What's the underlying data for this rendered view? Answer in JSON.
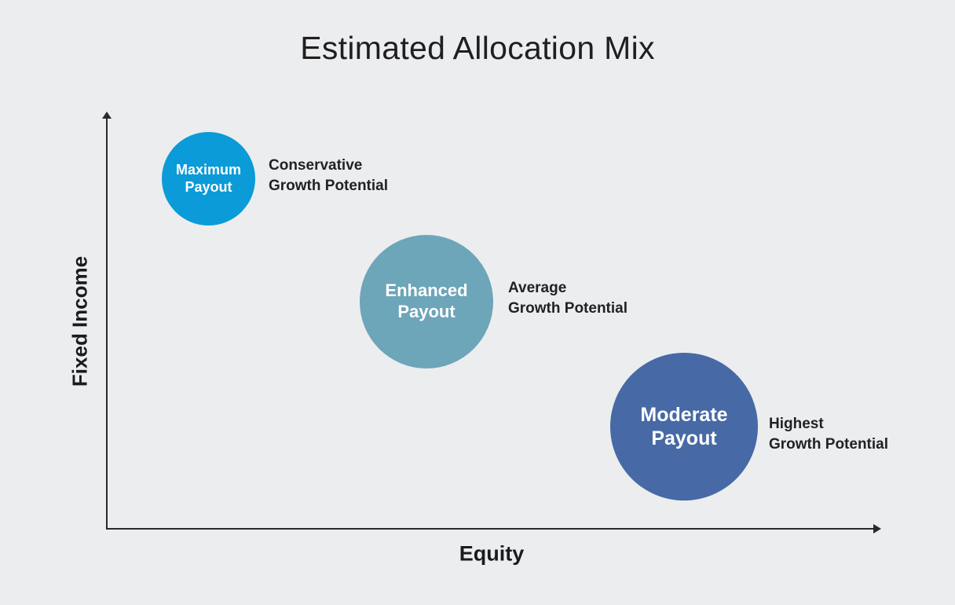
{
  "title": "Estimated Allocation Mix",
  "axes": {
    "x_label": "Equity",
    "y_label": "Fixed Income"
  },
  "colors": {
    "background": "#ecedef",
    "axis": "#2a2a2a",
    "maximum": "#0a9bd8",
    "enhanced": "#6da5b9",
    "moderate": "#4769a5"
  },
  "options": [
    {
      "name_line1": "Maximum",
      "name_line2": "Payout",
      "growth_line1": "Conservative",
      "growth_line2": "Growth Potential"
    },
    {
      "name_line1": "Enhanced",
      "name_line2": "Payout",
      "growth_line1": "Average",
      "growth_line2": "Growth Potential"
    },
    {
      "name_line1": "Moderate",
      "name_line2": "Payout",
      "growth_line1": "Highest",
      "growth_line2": "Growth Potential"
    }
  ]
}
